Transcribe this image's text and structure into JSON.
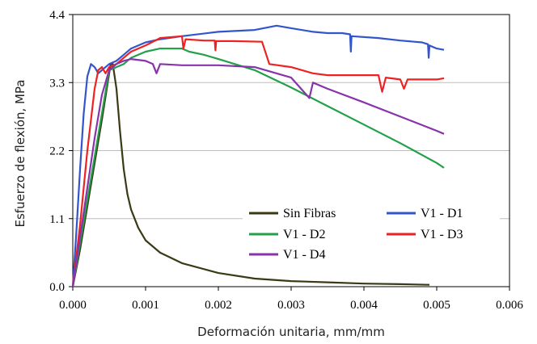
{
  "chart_data": {
    "type": "line",
    "title": "",
    "xlabel": "Deformación unitaria, mm/mm",
    "ylabel": "Esfuerzo de flexión, MPa",
    "xlim": [
      0,
      0.006
    ],
    "ylim": [
      0,
      4.4
    ],
    "x_ticks": [
      "0.000",
      "0.001",
      "0.002",
      "0.003",
      "0.004",
      "0.005",
      "0.006"
    ],
    "y_ticks": [
      "0.0",
      "1.1",
      "2.2",
      "3.3",
      "4.4"
    ],
    "grid": "horizontal",
    "legend_position": "lower-right",
    "series": [
      {
        "name": "Sin Fibras",
        "color": "#3a3a14",
        "points": [
          [
            0.0,
            0.0
          ],
          [
            0.0001,
            0.6
          ],
          [
            0.0002,
            1.3
          ],
          [
            0.0003,
            2.0
          ],
          [
            0.0004,
            2.7
          ],
          [
            0.00048,
            3.3
          ],
          [
            0.00052,
            3.6
          ],
          [
            0.00055,
            3.6
          ],
          [
            0.0006,
            3.2
          ],
          [
            0.00065,
            2.5
          ],
          [
            0.0007,
            1.9
          ],
          [
            0.00075,
            1.5
          ],
          [
            0.0008,
            1.25
          ],
          [
            0.0009,
            0.95
          ],
          [
            0.001,
            0.75
          ],
          [
            0.0012,
            0.55
          ],
          [
            0.0015,
            0.38
          ],
          [
            0.002,
            0.22
          ],
          [
            0.0025,
            0.13
          ],
          [
            0.003,
            0.09
          ],
          [
            0.0035,
            0.07
          ],
          [
            0.004,
            0.05
          ],
          [
            0.0045,
            0.04
          ],
          [
            0.0049,
            0.03
          ]
        ]
      },
      {
        "name": "V1 - D1",
        "color": "#3355cc",
        "points": [
          [
            0.0,
            0.0
          ],
          [
            5e-05,
            0.9
          ],
          [
            0.0001,
            1.9
          ],
          [
            0.00015,
            2.8
          ],
          [
            0.0002,
            3.4
          ],
          [
            0.00025,
            3.6
          ],
          [
            0.0003,
            3.55
          ],
          [
            0.00035,
            3.45
          ],
          [
            0.0004,
            3.5
          ],
          [
            0.0005,
            3.6
          ],
          [
            0.0006,
            3.65
          ],
          [
            0.0007,
            3.75
          ],
          [
            0.0008,
            3.85
          ],
          [
            0.001,
            3.95
          ],
          [
            0.0012,
            4.0
          ],
          [
            0.0015,
            4.05
          ],
          [
            0.002,
            4.12
          ],
          [
            0.0025,
            4.15
          ],
          [
            0.0028,
            4.22
          ],
          [
            0.003,
            4.18
          ],
          [
            0.0033,
            4.12
          ],
          [
            0.0035,
            4.1
          ],
          [
            0.0037,
            4.1
          ],
          [
            0.00381,
            4.08
          ],
          [
            0.00382,
            3.8
          ],
          [
            0.00383,
            4.05
          ],
          [
            0.0042,
            4.02
          ],
          [
            0.0045,
            3.98
          ],
          [
            0.0048,
            3.95
          ],
          [
            0.00488,
            3.92
          ],
          [
            0.00489,
            3.7
          ],
          [
            0.0049,
            3.9
          ],
          [
            0.005,
            3.85
          ],
          [
            0.0051,
            3.83
          ]
        ]
      },
      {
        "name": "V1 - D2",
        "color": "#22a04a",
        "points": [
          [
            0.0,
            0.0
          ],
          [
            0.0001,
            0.7
          ],
          [
            0.0002,
            1.4
          ],
          [
            0.0003,
            2.1
          ],
          [
            0.0004,
            2.8
          ],
          [
            0.0005,
            3.5
          ],
          [
            0.0006,
            3.55
          ],
          [
            0.0007,
            3.6
          ],
          [
            0.0008,
            3.7
          ],
          [
            0.001,
            3.8
          ],
          [
            0.0012,
            3.85
          ],
          [
            0.0014,
            3.85
          ],
          [
            0.0015,
            3.85
          ],
          [
            0.0016,
            3.8
          ],
          [
            0.0018,
            3.75
          ],
          [
            0.002,
            3.68
          ],
          [
            0.0025,
            3.5
          ],
          [
            0.003,
            3.22
          ],
          [
            0.0035,
            2.92
          ],
          [
            0.004,
            2.62
          ],
          [
            0.0045,
            2.32
          ],
          [
            0.005,
            2.0
          ],
          [
            0.0051,
            1.92
          ]
        ]
      },
      {
        "name": "V1 - D3",
        "color": "#ee2222",
        "points": [
          [
            0.0,
            0.0
          ],
          [
            0.0001,
            1.0
          ],
          [
            0.0002,
            2.2
          ],
          [
            0.0003,
            3.2
          ],
          [
            0.00035,
            3.5
          ],
          [
            0.0004,
            3.55
          ],
          [
            0.00045,
            3.45
          ],
          [
            0.0005,
            3.55
          ],
          [
            0.0006,
            3.6
          ],
          [
            0.0007,
            3.7
          ],
          [
            0.0008,
            3.8
          ],
          [
            0.001,
            3.9
          ],
          [
            0.0012,
            4.02
          ],
          [
            0.0015,
            4.05
          ],
          [
            0.00152,
            3.85
          ],
          [
            0.00155,
            4.0
          ],
          [
            0.0018,
            3.98
          ],
          [
            0.00195,
            3.98
          ],
          [
            0.00196,
            3.82
          ],
          [
            0.00197,
            3.97
          ],
          [
            0.0022,
            3.97
          ],
          [
            0.0026,
            3.96
          ],
          [
            0.0027,
            3.6
          ],
          [
            0.003,
            3.55
          ],
          [
            0.0033,
            3.45
          ],
          [
            0.0035,
            3.42
          ],
          [
            0.004,
            3.42
          ],
          [
            0.0042,
            3.42
          ],
          [
            0.00425,
            3.15
          ],
          [
            0.0043,
            3.38
          ],
          [
            0.0045,
            3.35
          ],
          [
            0.00455,
            3.2
          ],
          [
            0.0046,
            3.35
          ],
          [
            0.005,
            3.35
          ],
          [
            0.0051,
            3.37
          ]
        ]
      },
      {
        "name": "V1 - D4",
        "color": "#8833aa",
        "points": [
          [
            0.0,
            0.0
          ],
          [
            0.0001,
            0.8
          ],
          [
            0.0002,
            1.6
          ],
          [
            0.0003,
            2.4
          ],
          [
            0.0004,
            3.1
          ],
          [
            0.0005,
            3.5
          ],
          [
            0.0006,
            3.6
          ],
          [
            0.0007,
            3.65
          ],
          [
            0.0008,
            3.68
          ],
          [
            0.001,
            3.65
          ],
          [
            0.0011,
            3.6
          ],
          [
            0.00115,
            3.45
          ],
          [
            0.0012,
            3.6
          ],
          [
            0.0015,
            3.58
          ],
          [
            0.002,
            3.58
          ],
          [
            0.0025,
            3.55
          ],
          [
            0.003,
            3.38
          ],
          [
            0.00325,
            3.05
          ],
          [
            0.0033,
            3.3
          ],
          [
            0.0035,
            3.2
          ],
          [
            0.004,
            2.98
          ],
          [
            0.0045,
            2.75
          ],
          [
            0.005,
            2.52
          ],
          [
            0.0051,
            2.47
          ]
        ]
      }
    ]
  }
}
